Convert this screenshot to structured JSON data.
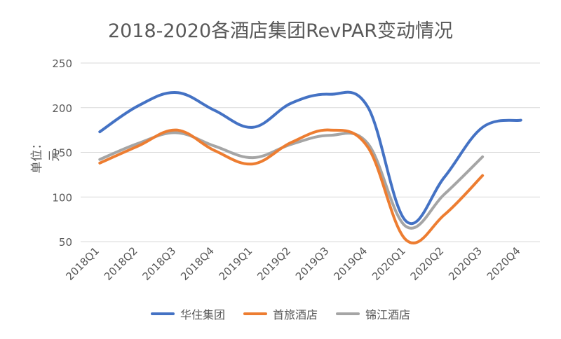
{
  "chart_data": {
    "type": "line",
    "title": "2018-2020各酒店集团RevPAR变动情况",
    "ylabel": "单位：元",
    "xlabel": "",
    "categories": [
      "2018Q1",
      "2018Q2",
      "2018Q3",
      "2018Q4",
      "2019Q1",
      "2019Q2",
      "2019Q3",
      "2019Q4",
      "2020Q1",
      "2020Q2",
      "2020Q3",
      "2020Q4"
    ],
    "ylim": [
      50,
      250
    ],
    "yticks": [
      50,
      100,
      150,
      200,
      250
    ],
    "grid": true,
    "legend_position": "bottom",
    "series": [
      {
        "name": "华住集团",
        "color": "#4472C4",
        "values": [
          173,
          202,
          217,
          197,
          178,
          205,
          215,
          201,
          73,
          122,
          178,
          186
        ]
      },
      {
        "name": "首旅酒店",
        "color": "#ED7D31",
        "values": [
          138,
          157,
          175,
          152,
          137,
          161,
          175,
          156,
          52,
          80,
          124,
          null
        ]
      },
      {
        "name": "锦江酒店",
        "color": "#A5A5A5",
        "values": [
          142,
          160,
          172,
          157,
          144,
          159,
          169,
          160,
          67,
          103,
          145,
          null
        ]
      }
    ]
  }
}
